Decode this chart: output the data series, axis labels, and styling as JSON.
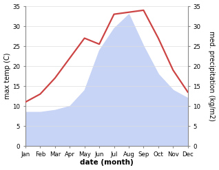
{
  "months": [
    "Jan",
    "Feb",
    "Mar",
    "Apr",
    "May",
    "Jun",
    "Jul",
    "Aug",
    "Sep",
    "Oct",
    "Nov",
    "Dec"
  ],
  "month_positions": [
    1,
    2,
    3,
    4,
    5,
    6,
    7,
    8,
    9,
    10,
    11,
    12
  ],
  "temp_values": [
    11,
    13,
    17,
    22,
    27,
    25.5,
    33,
    33.5,
    34,
    27,
    19,
    13.5
  ],
  "precip_values": [
    8.5,
    8.5,
    9,
    10,
    14,
    24,
    29.5,
    33,
    25,
    18,
    14,
    12
  ],
  "ylim": [
    0,
    35
  ],
  "yticks": [
    0,
    5,
    10,
    15,
    20,
    25,
    30,
    35
  ],
  "xlabel": "date (month)",
  "ylabel_left": "max temp (C)",
  "ylabel_right": "med. precipitation (kg/m2)",
  "line_color": "#cc4444",
  "fill_color": "#c8d4f5",
  "bg_color": "#ffffff",
  "line_width": 1.6,
  "axis_color": "#888888",
  "tick_label_size": 6.2,
  "ylabel_size": 7.0,
  "xlabel_size": 7.5
}
